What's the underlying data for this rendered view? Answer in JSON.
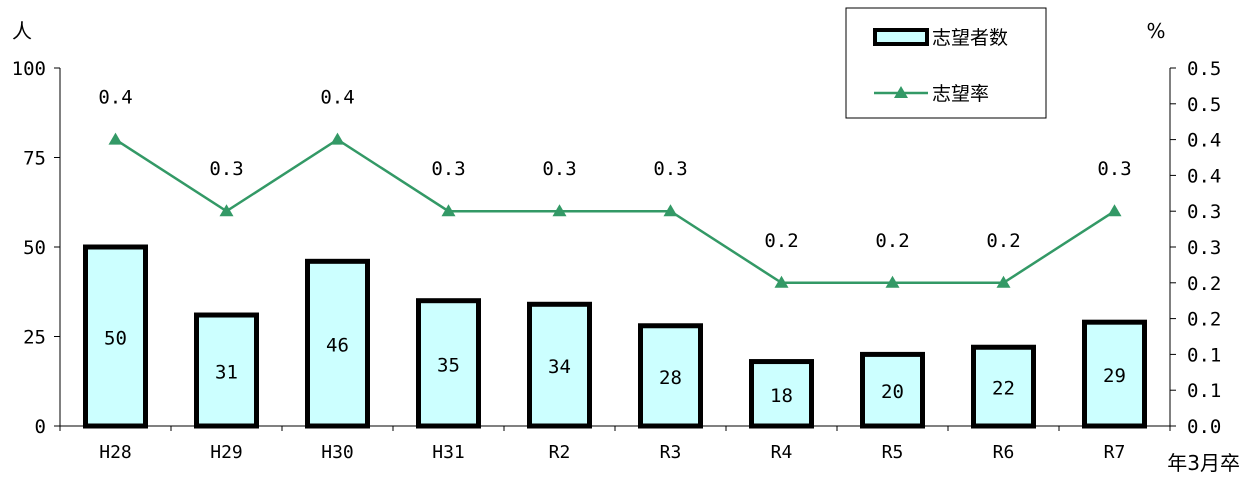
{
  "chart_data": {
    "type": "bar+line",
    "categories": [
      "H28",
      "H29",
      "H30",
      "H31",
      "R2",
      "R3",
      "R4",
      "R5",
      "R6",
      "R7"
    ],
    "series": [
      {
        "name": "志望者数",
        "kind": "bar",
        "axis": "left",
        "values": [
          50,
          31,
          46,
          35,
          34,
          28,
          18,
          20,
          22,
          29
        ],
        "data_labels": [
          "50",
          "31",
          "46",
          "35",
          "34",
          "28",
          "18",
          "20",
          "22",
          "29"
        ]
      },
      {
        "name": "志望率",
        "kind": "line",
        "axis": "right",
        "values": [
          0.4,
          0.3,
          0.4,
          0.3,
          0.3,
          0.3,
          0.2,
          0.2,
          0.2,
          0.3
        ],
        "data_labels": [
          "0.4",
          "0.3",
          "0.4",
          "0.3",
          "0.3",
          "0.3",
          "0.2",
          "0.2",
          "0.2",
          "0.3"
        ]
      }
    ],
    "left_axis": {
      "unit": "人",
      "ylim": [
        0,
        100
      ],
      "ticks": [
        0,
        25,
        50,
        75,
        100
      ],
      "tick_labels": [
        "0",
        "25",
        "50",
        "75",
        "100"
      ]
    },
    "right_axis": {
      "unit": "%",
      "ylim": [
        0,
        0.5
      ],
      "ticks": [
        0,
        0.05,
        0.1,
        0.15,
        0.2,
        0.25,
        0.3,
        0.35,
        0.4,
        0.45,
        0.5
      ],
      "tick_labels": [
        "0.0",
        "0.1",
        "0.1",
        "0.2",
        "0.2",
        "0.3",
        "0.3",
        "0.4",
        "0.4",
        "0.5",
        "0.5"
      ]
    },
    "xlabel": "年3月卒",
    "grid": false,
    "legend": "top-right",
    "colors": {
      "bar_fill": "#ccffff",
      "bar_stroke": "#000000",
      "line": "#339966"
    }
  }
}
